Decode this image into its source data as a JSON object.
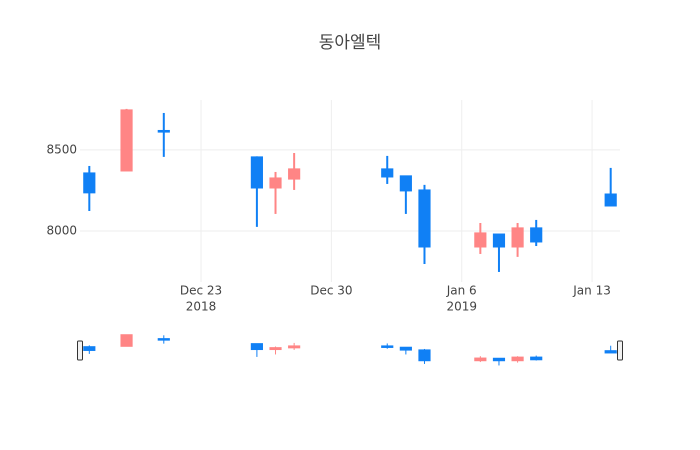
{
  "chart_data": {
    "type": "candlestick",
    "title": "동아엘텍",
    "x": [
      "2018-12-17",
      "2018-12-19",
      "2018-12-21",
      "2018-12-26",
      "2018-12-27",
      "2018-12-28",
      "2019-01-02",
      "2019-01-03",
      "2019-01-04",
      "2019-01-07",
      "2019-01-08",
      "2019-01-09",
      "2019-01-10",
      "2019-01-14"
    ],
    "open": [
      8358,
      8370,
      8620,
      8457,
      8265,
      8320,
      8383,
      8340,
      8253,
      7901,
      7981,
      7901,
      8019,
      8228
    ],
    "high": [
      8401,
      8753,
      8728,
      8460,
      8364,
      8481,
      8463,
      8340,
      8284,
      8049,
      7981,
      8049,
      8068,
      8389
    ],
    "low": [
      8123,
      8370,
      8457,
      8025,
      8105,
      8253,
      8290,
      8105,
      7796,
      7858,
      7747,
      7840,
      7907,
      8154
    ],
    "close": [
      8235,
      8747,
      8610,
      8265,
      8327,
      8383,
      8333,
      8247,
      7901,
      7988,
      7901,
      8019,
      7932,
      8154
    ],
    "increasing_color": "#ff8585",
    "decreasing_color": "#1080f5",
    "xlim": [
      "2018-12-16T12:00",
      "2019-01-14T12:00"
    ],
    "xticks": [
      {
        "value": "2018-12-23",
        "label": "Dec 23",
        "year": "2018"
      },
      {
        "value": "2018-12-30",
        "label": "Dec 30"
      },
      {
        "value": "2019-01-06",
        "label": "Jan 6",
        "year": "2019"
      },
      {
        "value": "2019-01-13",
        "label": "Jan 13"
      }
    ],
    "ylim": [
      7685,
      8808
    ],
    "yticks": [
      8000,
      8500
    ],
    "grid": true,
    "rangeslider": true
  }
}
